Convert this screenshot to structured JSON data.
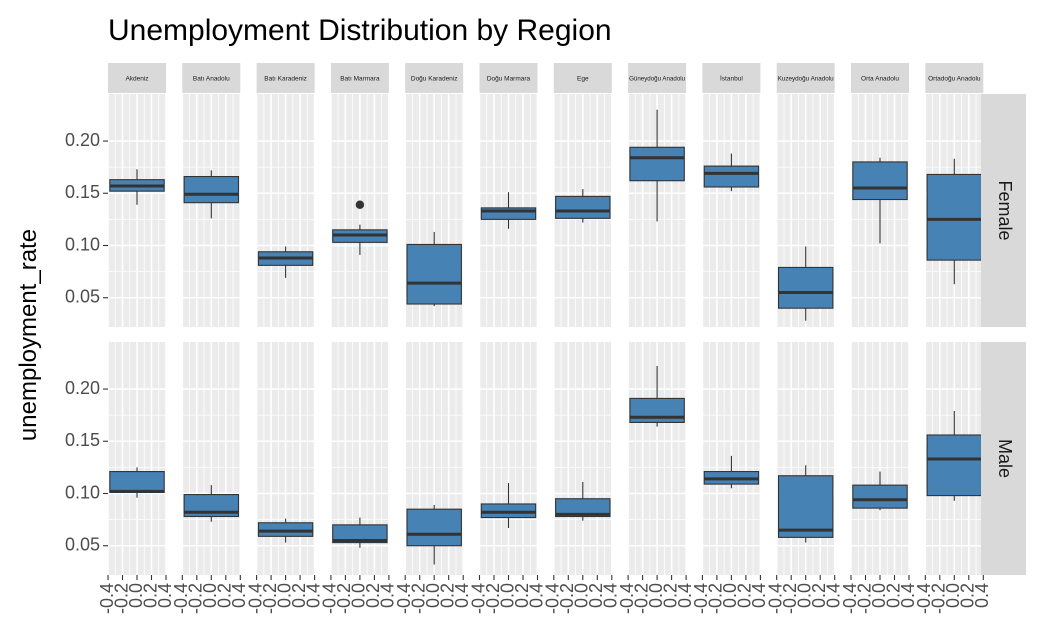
{
  "chart_data": {
    "type": "boxplot",
    "title": "Unemployment Distribution by Region",
    "xlabel": "",
    "ylabel": "unemployment_rate",
    "ylim": [
      0.022,
      0.245
    ],
    "xlim": [
      -0.4,
      0.4
    ],
    "yticks": [
      0.05,
      0.1,
      0.15,
      0.2
    ],
    "ytick_labels": [
      "0.05",
      "0.10",
      "0.15",
      "0.20"
    ],
    "xticks": [
      -0.4,
      -0.2,
      0.0,
      0.2,
      0.4
    ],
    "xtick_labels": [
      "-0.4",
      "-0.2",
      "0.0",
      "0.2",
      "0.4"
    ],
    "fill_color": "#4682b4",
    "panel_bg": "#ebebeb",
    "strip_bg": "#d9d9d9",
    "grid": true,
    "columns": [
      "Akdeniz",
      "Batı Anadolu",
      "Batı Karadeniz",
      "Batı Marmara",
      "Doğu Karadeniz",
      "Doğu Marmara",
      "Ege",
      "Güneydoğu Anadolu",
      "İstanbul",
      "Kuzeydoğu Anadolu",
      "Orta Anadolu",
      "Ortadoğu Anadolu"
    ],
    "rows": [
      "Female",
      "Male"
    ],
    "boxes": {
      "Female": [
        {
          "min": 0.139,
          "q1": 0.152,
          "median": 0.157,
          "q3": 0.163,
          "max": 0.173
        },
        {
          "min": 0.126,
          "q1": 0.141,
          "median": 0.149,
          "q3": 0.166,
          "max": 0.172
        },
        {
          "min": 0.069,
          "q1": 0.081,
          "median": 0.088,
          "q3": 0.094,
          "max": 0.099
        },
        {
          "min": 0.091,
          "q1": 0.103,
          "median": 0.11,
          "q3": 0.115,
          "max": 0.12,
          "outliers": [
            0.139
          ]
        },
        {
          "min": 0.042,
          "q1": 0.044,
          "median": 0.064,
          "q3": 0.101,
          "max": 0.113
        },
        {
          "min": 0.116,
          "q1": 0.125,
          "median": 0.133,
          "q3": 0.136,
          "max": 0.151
        },
        {
          "min": 0.122,
          "q1": 0.126,
          "median": 0.133,
          "q3": 0.147,
          "max": 0.154
        },
        {
          "min": 0.123,
          "q1": 0.162,
          "median": 0.184,
          "q3": 0.194,
          "max": 0.23
        },
        {
          "min": 0.152,
          "q1": 0.156,
          "median": 0.169,
          "q3": 0.176,
          "max": 0.188
        },
        {
          "min": 0.028,
          "q1": 0.04,
          "median": 0.055,
          "q3": 0.079,
          "max": 0.099
        },
        {
          "min": 0.102,
          "q1": 0.144,
          "median": 0.155,
          "q3": 0.18,
          "max": 0.184
        },
        {
          "min": 0.063,
          "q1": 0.086,
          "median": 0.125,
          "q3": 0.168,
          "max": 0.183
        }
      ],
      "Male": [
        {
          "min": 0.096,
          "q1": 0.101,
          "median": 0.102,
          "q3": 0.121,
          "max": 0.125
        },
        {
          "min": 0.073,
          "q1": 0.078,
          "median": 0.082,
          "q3": 0.099,
          "max": 0.108
        },
        {
          "min": 0.053,
          "q1": 0.059,
          "median": 0.064,
          "q3": 0.072,
          "max": 0.076
        },
        {
          "min": 0.048,
          "q1": 0.053,
          "median": 0.055,
          "q3": 0.07,
          "max": 0.077
        },
        {
          "min": 0.032,
          "q1": 0.05,
          "median": 0.061,
          "q3": 0.085,
          "max": 0.089
        },
        {
          "min": 0.067,
          "q1": 0.077,
          "median": 0.082,
          "q3": 0.09,
          "max": 0.11
        },
        {
          "min": 0.074,
          "q1": 0.078,
          "median": 0.08,
          "q3": 0.095,
          "max": 0.111
        },
        {
          "min": 0.164,
          "q1": 0.168,
          "median": 0.173,
          "q3": 0.191,
          "max": 0.222
        },
        {
          "min": 0.105,
          "q1": 0.109,
          "median": 0.114,
          "q3": 0.121,
          "max": 0.136
        },
        {
          "min": 0.053,
          "q1": 0.058,
          "median": 0.065,
          "q3": 0.117,
          "max": 0.127
        },
        {
          "min": 0.084,
          "q1": 0.086,
          "median": 0.094,
          "q3": 0.108,
          "max": 0.121
        },
        {
          "min": 0.093,
          "q1": 0.098,
          "median": 0.133,
          "q3": 0.156,
          "max": 0.179
        }
      ]
    }
  }
}
